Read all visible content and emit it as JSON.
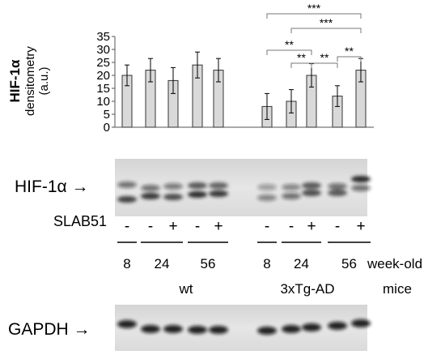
{
  "chart_data": {
    "type": "bar",
    "ylabel_main": "HIF-1α",
    "ylabel_sub1": "densitometry",
    "ylabel_sub2": "(a.u.)",
    "ylim": [
      0,
      35
    ],
    "yticks": [
      0,
      5,
      10,
      15,
      20,
      25,
      30,
      35
    ],
    "bar_color": "#d9d9d9",
    "bars": [
      {
        "group": "wt",
        "age": "8",
        "slab51": "-",
        "value": 20,
        "err": 4
      },
      {
        "group": "wt",
        "age": "24",
        "slab51": "-",
        "value": 22,
        "err": 4.5
      },
      {
        "group": "wt",
        "age": "24",
        "slab51": "+",
        "value": 18,
        "err": 5
      },
      {
        "group": "wt",
        "age": "56",
        "slab51": "-",
        "value": 24,
        "err": 5
      },
      {
        "group": "wt",
        "age": "56",
        "slab51": "+",
        "value": 22,
        "err": 4.5
      },
      {
        "group": "3xTg-AD",
        "age": "8",
        "slab51": "-",
        "value": 8,
        "err": 5
      },
      {
        "group": "3xTg-AD",
        "age": "24",
        "slab51": "-",
        "value": 10,
        "err": 4.5
      },
      {
        "group": "3xTg-AD",
        "age": "24",
        "slab51": "+",
        "value": 20,
        "err": 4.5
      },
      {
        "group": "3xTg-AD",
        "age": "56",
        "slab51": "-",
        "value": 12,
        "err": 4
      },
      {
        "group": "3xTg-AD",
        "age": "56",
        "slab51": "+",
        "value": 22,
        "err": 4.5
      }
    ],
    "significance": [
      {
        "from": 5,
        "to": 9,
        "label": "***"
      },
      {
        "from": 6,
        "to": 9,
        "label": "***"
      },
      {
        "from": 5,
        "to": 7,
        "label": "**"
      },
      {
        "from": 6,
        "to": 7,
        "label": "**"
      },
      {
        "from": 7,
        "to": 8,
        "label": "**"
      },
      {
        "from": 8,
        "to": 9,
        "label": "**"
      }
    ]
  },
  "blots": {
    "hif_label": "HIF-1α →",
    "gapdh_label": "GAPDH →"
  },
  "treatment": {
    "label": "SLAB51",
    "signs": [
      "-",
      "-",
      "+",
      "-",
      "+",
      "-",
      "-",
      "+",
      "-",
      "+"
    ]
  },
  "ages": [
    "8",
    "24",
    "56",
    "8",
    "24",
    "56"
  ],
  "week_label": "week-old",
  "groups": [
    "wt",
    "3xTg-AD"
  ],
  "mice_label": "mice"
}
